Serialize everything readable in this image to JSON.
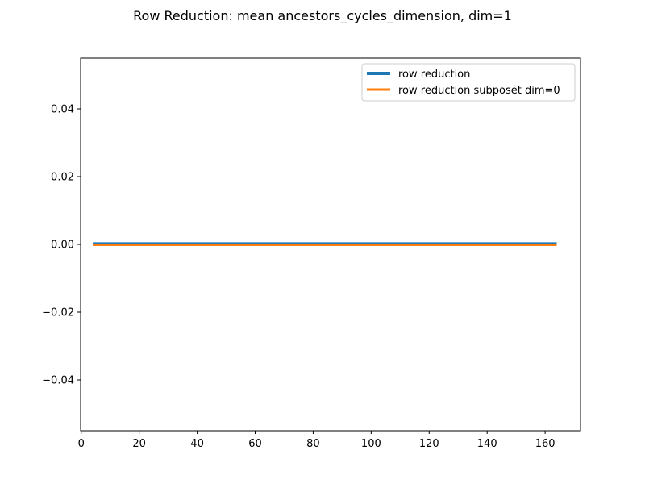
{
  "chart_data": {
    "type": "line",
    "title": "Row Reduction: mean ancestors_cycles_dimension, dim=1",
    "xlabel": "",
    "ylabel": "",
    "xlim": [
      -0.2,
      172.2
    ],
    "ylim": [
      -0.055,
      0.055
    ],
    "x_ticks": [
      0,
      20,
      40,
      60,
      80,
      100,
      120,
      140,
      160
    ],
    "x_tick_labels": [
      "0",
      "20",
      "40",
      "60",
      "80",
      "100",
      "120",
      "140",
      "160"
    ],
    "y_ticks": [
      0.04,
      0.02,
      0.0,
      -0.02,
      -0.04
    ],
    "y_tick_labels": [
      "0.04",
      "0.02",
      "0.00",
      "−0.02",
      "−0.04"
    ],
    "grid": false,
    "legend_position": "upper right",
    "series": [
      {
        "name": "row reduction",
        "color": "#1f77b4",
        "x": [
          4,
          164
        ],
        "y": [
          0,
          0
        ]
      },
      {
        "name": "row reduction subposet dim=0",
        "color": "#ff7f0e",
        "x": [
          4,
          164
        ],
        "y": [
          0,
          0
        ]
      }
    ]
  }
}
